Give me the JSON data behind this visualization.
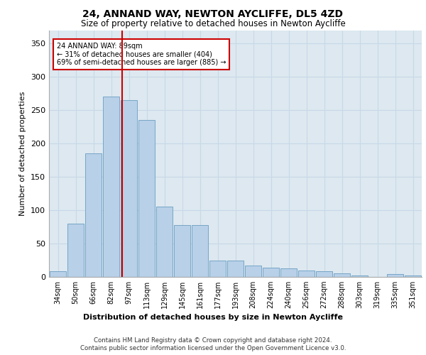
{
  "title": "24, ANNAND WAY, NEWTON AYCLIFFE, DL5 4ZD",
  "subtitle": "Size of property relative to detached houses in Newton Aycliffe",
  "xlabel": "Distribution of detached houses by size in Newton Aycliffe",
  "ylabel": "Number of detached properties",
  "categories": [
    "34sqm",
    "50sqm",
    "66sqm",
    "82sqm",
    "97sqm",
    "113sqm",
    "129sqm",
    "145sqm",
    "161sqm",
    "177sqm",
    "193sqm",
    "208sqm",
    "224sqm",
    "240sqm",
    "256sqm",
    "272sqm",
    "288sqm",
    "303sqm",
    "319sqm",
    "335sqm",
    "351sqm"
  ],
  "bar_values": [
    8,
    80,
    185,
    270,
    265,
    235,
    105,
    78,
    78,
    25,
    25,
    17,
    14,
    13,
    10,
    8,
    5,
    2,
    0,
    4,
    2
  ],
  "bar_color": "#b8d0e8",
  "bar_edge_color": "#6a9ec0",
  "vline_x": 3.62,
  "vline_color": "#cc0000",
  "annotation_title": "24 ANNAND WAY: 89sqm",
  "annotation_line1": "← 31% of detached houses are smaller (404)",
  "annotation_line2": "69% of semi-detached houses are larger (885) →",
  "annotation_box_color": "#cc0000",
  "ylim": [
    0,
    370
  ],
  "yticks": [
    0,
    50,
    100,
    150,
    200,
    250,
    300,
    350
  ],
  "grid_color": "#c8d8e8",
  "bg_color": "#dde8f0",
  "footer_line1": "Contains HM Land Registry data © Crown copyright and database right 2024.",
  "footer_line2": "Contains public sector information licensed under the Open Government Licence v3.0."
}
